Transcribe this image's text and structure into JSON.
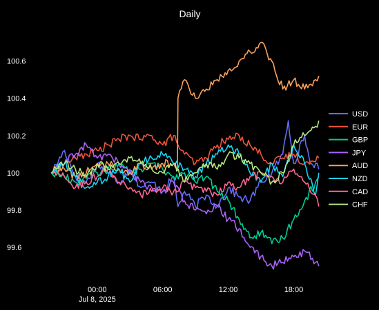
{
  "chart_data": {
    "type": "line",
    "title": "Daily",
    "xlabel": "",
    "ylabel": "",
    "x_range_hours": [
      -6.5,
      20.5
    ],
    "ylim": [
      99.43,
      100.78
    ],
    "x_ticks": [
      {
        "hour": 0,
        "label": "00:00",
        "sublabel": "Jul 8, 2025"
      },
      {
        "hour": 6,
        "label": "06:00",
        "sublabel": ""
      },
      {
        "hour": 12,
        "label": "12:00",
        "sublabel": ""
      },
      {
        "hour": 18,
        "label": "18:00",
        "sublabel": ""
      }
    ],
    "y_ticks": [
      {
        "value": 99.6,
        "label": "99.6"
      },
      {
        "value": 99.8,
        "label": "99.8"
      },
      {
        "value": 100.0,
        "label": "100"
      },
      {
        "value": 100.2,
        "label": "100.2"
      },
      {
        "value": 100.4,
        "label": "100.4"
      },
      {
        "value": 100.6,
        "label": "100.6"
      }
    ],
    "grid": false,
    "legend_position": "right",
    "series": [
      {
        "name": "USD",
        "color": "#636efa",
        "x": [
          -4.2,
          -3,
          -2,
          -1,
          0,
          1,
          2,
          3,
          4,
          5,
          6,
          7,
          7.4,
          8,
          9,
          10,
          11,
          12,
          13,
          14,
          15,
          16,
          17,
          17.5,
          18,
          19,
          19.5,
          20,
          20.3
        ],
        "y": [
          100.0,
          100.12,
          99.98,
          99.95,
          100.05,
          100.0,
          99.95,
          100.02,
          99.92,
          99.95,
          99.9,
          99.98,
          99.82,
          99.9,
          99.82,
          99.88,
          99.82,
          99.92,
          99.87,
          99.85,
          99.95,
          100.0,
          100.1,
          100.28,
          100.05,
          100.2,
          100.05,
          100.05,
          100.02
        ]
      },
      {
        "name": "EUR",
        "color": "#ef553b",
        "x": [
          -4.2,
          -3,
          -2,
          -1,
          0,
          1,
          2,
          3,
          4,
          5,
          6,
          7,
          7.4,
          8,
          9,
          10,
          11,
          12,
          13,
          14,
          15,
          16,
          17,
          18,
          19,
          20,
          20.3
        ],
        "y": [
          100.0,
          100.05,
          100.08,
          100.1,
          100.12,
          100.15,
          100.18,
          100.2,
          100.18,
          100.2,
          100.15,
          100.2,
          100.15,
          100.1,
          100.05,
          100.08,
          100.15,
          100.18,
          100.2,
          100.15,
          100.1,
          100.05,
          100.08,
          100.1,
          100.05,
          100.06,
          100.08
        ]
      },
      {
        "name": "GBP",
        "color": "#00cc96",
        "x": [
          -4.2,
          -3,
          -2,
          -1,
          0,
          1,
          2,
          3,
          4,
          5,
          6,
          7,
          8,
          9,
          10,
          11,
          12,
          13,
          14,
          15,
          16,
          17,
          18,
          19,
          20,
          20.3
        ],
        "y": [
          100.0,
          99.98,
          99.95,
          99.97,
          100.0,
          100.02,
          100.05,
          100.0,
          100.02,
          100.05,
          100.02,
          99.98,
          100.0,
          99.95,
          99.98,
          99.9,
          99.85,
          99.75,
          99.65,
          99.68,
          99.62,
          99.65,
          99.75,
          99.85,
          99.95,
          99.98
        ]
      },
      {
        "name": "JPY",
        "color": "#ab63fa",
        "x": [
          -4.2,
          -3,
          -2,
          -1,
          0,
          1,
          2,
          3,
          4,
          5,
          6,
          7,
          8,
          9,
          10,
          11,
          12,
          13,
          14,
          15,
          16,
          17,
          18,
          19,
          20,
          20.3
        ],
        "y": [
          100.0,
          100.05,
          100.1,
          100.15,
          100.08,
          100.1,
          100.05,
          100.0,
          99.95,
          99.92,
          99.9,
          99.95,
          99.85,
          99.8,
          99.78,
          99.82,
          99.75,
          99.7,
          99.6,
          99.55,
          99.5,
          99.52,
          99.55,
          99.58,
          99.52,
          99.5
        ]
      },
      {
        "name": "AUD",
        "color": "#ffa15a",
        "x": [
          -4.2,
          -3,
          -2,
          -1,
          0,
          1,
          2,
          3,
          4,
          5,
          6,
          7,
          7.35,
          7.4,
          8,
          9,
          10,
          11,
          12,
          13,
          14,
          15,
          16,
          17,
          18,
          19,
          20,
          20.3
        ],
        "y": [
          100.0,
          100.02,
          99.98,
          100.0,
          100.05,
          100.05,
          100.02,
          100.0,
          100.05,
          100.02,
          100.05,
          100.05,
          100.02,
          100.4,
          100.5,
          100.4,
          100.45,
          100.5,
          100.55,
          100.6,
          100.65,
          100.7,
          100.6,
          100.45,
          100.5,
          100.45,
          100.5,
          100.52
        ]
      },
      {
        "name": "NZD",
        "color": "#19d3f3",
        "x": [
          -4.2,
          -3,
          -2,
          -1,
          0,
          1,
          2,
          3,
          4,
          5,
          6,
          7,
          8,
          9,
          10,
          11,
          12,
          13,
          14,
          15,
          16,
          17,
          18,
          19,
          20,
          20.3
        ],
        "y": [
          100.0,
          100.05,
          99.98,
          99.92,
          99.95,
          99.98,
          100.02,
          99.95,
          100.05,
          100.08,
          100.1,
          100.05,
          100.02,
          99.98,
          100.05,
          100.1,
          100.15,
          100.1,
          100.0,
          99.95,
          100.05,
          99.98,
          100.15,
          100.05,
          99.88,
          100.0
        ]
      },
      {
        "name": "CAD",
        "color": "#ff6692",
        "x": [
          -4.2,
          -3,
          -2,
          -1,
          0,
          1,
          2,
          3,
          4,
          5,
          6,
          7,
          8,
          9,
          10,
          11,
          12,
          13,
          14,
          15,
          16,
          17,
          18,
          19,
          20,
          20.3
        ],
        "y": [
          100.0,
          99.98,
          99.92,
          99.95,
          99.98,
          100.02,
          99.95,
          99.92,
          99.88,
          99.9,
          99.92,
          99.9,
          99.95,
          99.92,
          99.9,
          99.88,
          99.95,
          99.92,
          99.98,
          100.0,
          99.98,
          99.95,
          100.02,
          99.95,
          99.88,
          99.82
        ]
      },
      {
        "name": "CHF",
        "color": "#b6e880",
        "x": [
          -4.2,
          -3,
          -2,
          -1,
          0,
          1,
          2,
          3,
          4,
          5,
          6,
          7,
          8,
          9,
          10,
          11,
          12,
          13,
          14,
          15,
          16,
          17,
          18,
          19,
          20,
          20.3
        ],
        "y": [
          100.0,
          100.05,
          100.02,
          99.98,
          100.05,
          100.02,
          100.05,
          100.08,
          100.05,
          100.02,
          100.0,
          100.05,
          99.95,
          100.0,
          100.05,
          100.02,
          100.1,
          100.08,
          100.05,
          100.0,
          99.95,
          100.0,
          100.15,
          100.2,
          100.25,
          100.28
        ]
      }
    ]
  }
}
